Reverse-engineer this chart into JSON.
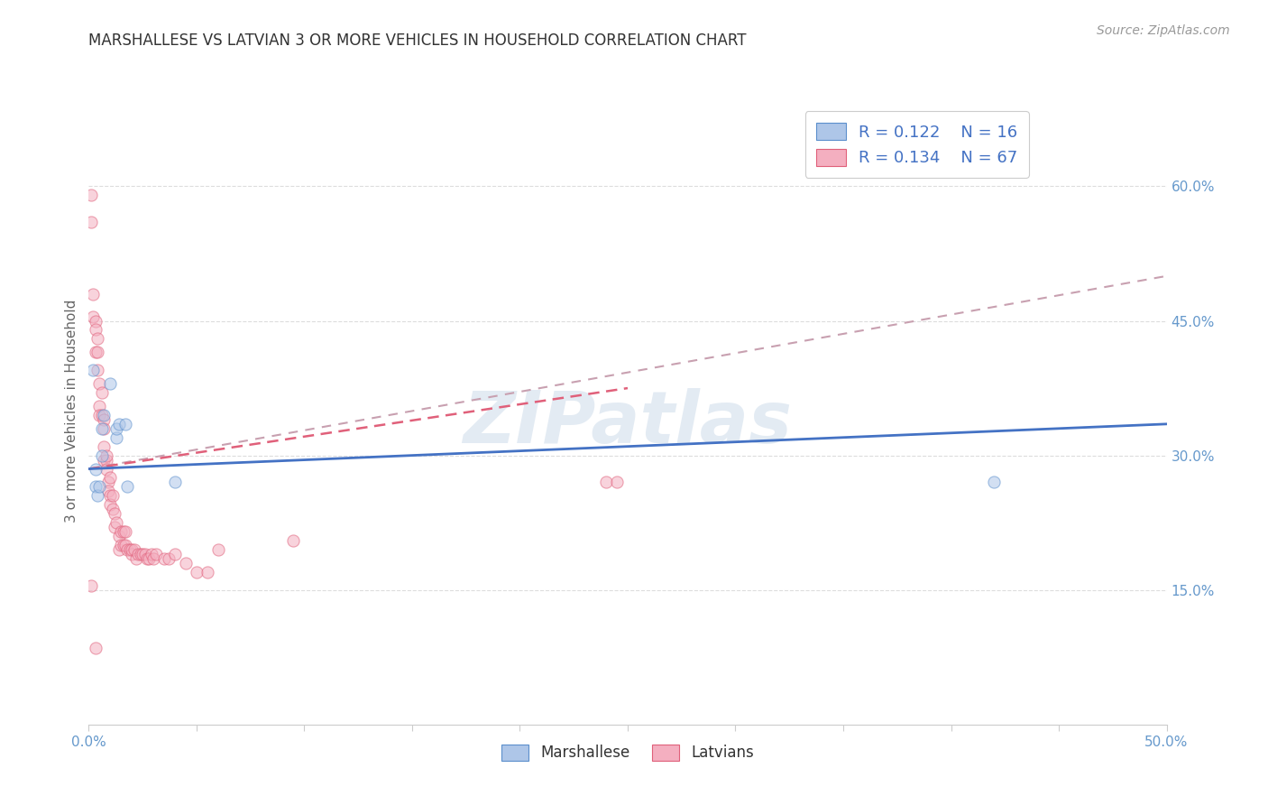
{
  "title": "MARSHALLESE VS LATVIAN 3 OR MORE VEHICLES IN HOUSEHOLD CORRELATION CHART",
  "source": "Source: ZipAtlas.com",
  "ylabel": "3 or more Vehicles in Household",
  "xlim": [
    0.0,
    0.5
  ],
  "ylim": [
    0.0,
    0.7
  ],
  "yticks_right": [
    0.15,
    0.3,
    0.45,
    0.6
  ],
  "ytick_labels_right": [
    "15.0%",
    "30.0%",
    "45.0%",
    "60.0%"
  ],
  "watermark": "ZIPatlas",
  "legend_entries": [
    {
      "label": "Marshallese",
      "R": "0.122",
      "N": "16",
      "color": "#aec6e8",
      "edgecolor": "#5b8fcc"
    },
    {
      "label": "Latvians",
      "R": "0.134",
      "N": "67",
      "color": "#f4afc0",
      "edgecolor": "#e0607a"
    }
  ],
  "marshallese_scatter": {
    "x": [
      0.002,
      0.003,
      0.003,
      0.004,
      0.005,
      0.006,
      0.006,
      0.007,
      0.01,
      0.013,
      0.013,
      0.014,
      0.017,
      0.018,
      0.04,
      0.42
    ],
    "y": [
      0.395,
      0.285,
      0.265,
      0.255,
      0.265,
      0.3,
      0.33,
      0.345,
      0.38,
      0.32,
      0.33,
      0.335,
      0.335,
      0.265,
      0.27,
      0.27
    ]
  },
  "latvian_scatter": {
    "x": [
      0.001,
      0.001,
      0.002,
      0.002,
      0.003,
      0.003,
      0.003,
      0.004,
      0.004,
      0.004,
      0.005,
      0.005,
      0.005,
      0.006,
      0.006,
      0.007,
      0.007,
      0.007,
      0.007,
      0.008,
      0.008,
      0.008,
      0.009,
      0.009,
      0.01,
      0.01,
      0.01,
      0.011,
      0.011,
      0.012,
      0.012,
      0.013,
      0.014,
      0.014,
      0.015,
      0.015,
      0.016,
      0.016,
      0.017,
      0.017,
      0.018,
      0.019,
      0.02,
      0.02,
      0.021,
      0.022,
      0.023,
      0.024,
      0.025,
      0.026,
      0.027,
      0.028,
      0.029,
      0.03,
      0.031,
      0.035,
      0.037,
      0.04,
      0.045,
      0.05,
      0.055,
      0.06,
      0.24,
      0.245,
      0.001,
      0.003,
      0.095
    ],
    "y": [
      0.59,
      0.56,
      0.48,
      0.455,
      0.45,
      0.44,
      0.415,
      0.43,
      0.415,
      0.395,
      0.38,
      0.355,
      0.345,
      0.345,
      0.37,
      0.34,
      0.33,
      0.31,
      0.295,
      0.295,
      0.3,
      0.285,
      0.27,
      0.26,
      0.275,
      0.255,
      0.245,
      0.255,
      0.24,
      0.235,
      0.22,
      0.225,
      0.21,
      0.195,
      0.215,
      0.2,
      0.215,
      0.2,
      0.215,
      0.2,
      0.195,
      0.195,
      0.19,
      0.195,
      0.195,
      0.185,
      0.19,
      0.19,
      0.19,
      0.19,
      0.185,
      0.185,
      0.19,
      0.185,
      0.19,
      0.185,
      0.185,
      0.19,
      0.18,
      0.17,
      0.17,
      0.195,
      0.27,
      0.27,
      0.155,
      0.085,
      0.205
    ]
  },
  "marshallese_line": {
    "color": "#4472c4",
    "x0": 0.0,
    "y0": 0.285,
    "x1": 0.5,
    "y1": 0.335,
    "style": "solid",
    "linewidth": 2.0
  },
  "latvian_line": {
    "color": "#e0607a",
    "x0": 0.0,
    "y0": 0.285,
    "x1": 0.25,
    "y1": 0.375,
    "style": "dashed",
    "linewidth": 1.8
  },
  "latvian_dashed_line": {
    "color": "#c8a0b0",
    "x0": 0.0,
    "y0": 0.285,
    "x1": 0.5,
    "y1": 0.5,
    "style": "dashed",
    "linewidth": 1.5
  },
  "background_color": "#ffffff",
  "grid_color": "#dddddd",
  "title_color": "#333333",
  "axis_color": "#6699cc",
  "scatter_size": 90,
  "scatter_alpha": 0.55
}
